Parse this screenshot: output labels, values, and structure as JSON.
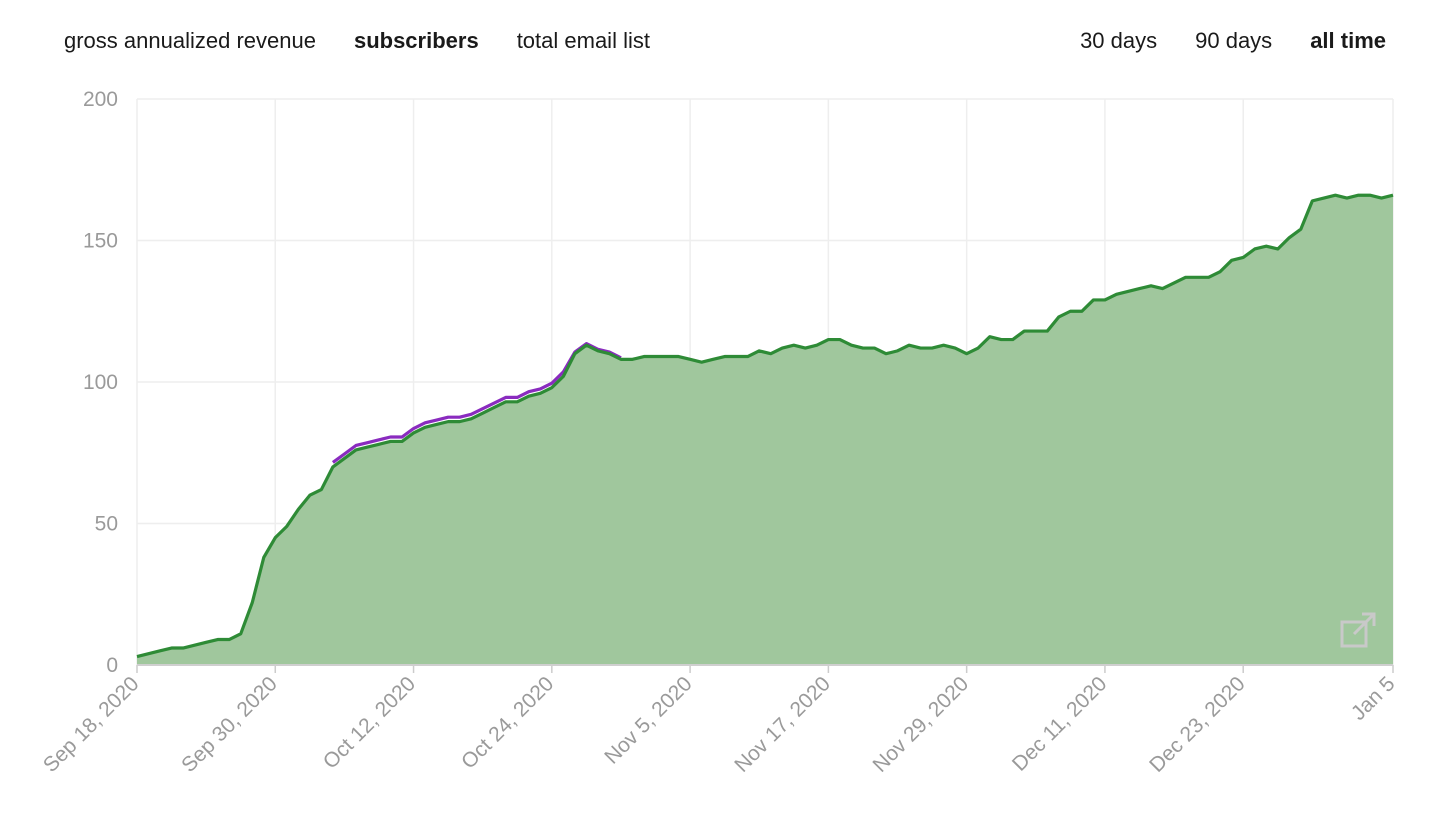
{
  "metric_tabs": [
    {
      "label": "gross annualized revenue",
      "active": false
    },
    {
      "label": "subscribers",
      "active": true
    },
    {
      "label": "total email list",
      "active": false
    }
  ],
  "range_tabs": [
    {
      "label": "30 days",
      "active": false
    },
    {
      "label": "90 days",
      "active": false
    },
    {
      "label": "all time",
      "active": true
    }
  ],
  "colors": {
    "fill": "#a0c79d",
    "line": "#2e8b36",
    "line2": "#8a2bbf",
    "grid": "#eeeeee",
    "tick": "#9a9a9a"
  },
  "expand_icon": "external-link-icon",
  "chart_data": {
    "type": "area",
    "title": "",
    "xlabel": "",
    "ylabel": "",
    "ylim": [
      0,
      200
    ],
    "yticks": [
      0,
      50,
      100,
      150,
      200
    ],
    "xlim": [
      "2020-09-18",
      "2021-01-05"
    ],
    "xticks": [
      {
        "date": "2020-09-18",
        "label": "Sep 18, 2020"
      },
      {
        "date": "2020-09-30",
        "label": "Sep 30, 2020"
      },
      {
        "date": "2020-10-12",
        "label": "Oct 12, 2020"
      },
      {
        "date": "2020-10-24",
        "label": "Oct 24, 2020"
      },
      {
        "date": "2020-11-05",
        "label": "Nov 5, 2020"
      },
      {
        "date": "2020-11-17",
        "label": "Nov 17, 2020"
      },
      {
        "date": "2020-11-29",
        "label": "Nov 29, 2020"
      },
      {
        "date": "2020-12-11",
        "label": "Dec 11, 2020"
      },
      {
        "date": "2020-12-23",
        "label": "Dec 23, 2020"
      },
      {
        "date": "2021-01-05",
        "label": "Jan 5"
      }
    ],
    "grid": true,
    "series": [
      {
        "color": "#2e8b36",
        "x": [
          "2020-09-18",
          "2020-09-19",
          "2020-09-20",
          "2020-09-21",
          "2020-09-22",
          "2020-09-23",
          "2020-09-24",
          "2020-09-25",
          "2020-09-26",
          "2020-09-27",
          "2020-09-28",
          "2020-09-29",
          "2020-09-30",
          "2020-10-01",
          "2020-10-02",
          "2020-10-03",
          "2020-10-04",
          "2020-10-05",
          "2020-10-06",
          "2020-10-07",
          "2020-10-08",
          "2020-10-09",
          "2020-10-10",
          "2020-10-11",
          "2020-10-12",
          "2020-10-13",
          "2020-10-14",
          "2020-10-15",
          "2020-10-16",
          "2020-10-17",
          "2020-10-18",
          "2020-10-19",
          "2020-10-20",
          "2020-10-21",
          "2020-10-22",
          "2020-10-23",
          "2020-10-24",
          "2020-10-25",
          "2020-10-26",
          "2020-10-27",
          "2020-10-28",
          "2020-10-29",
          "2020-10-30",
          "2020-10-31",
          "2020-11-01",
          "2020-11-02",
          "2020-11-03",
          "2020-11-04",
          "2020-11-05",
          "2020-11-06",
          "2020-11-07",
          "2020-11-08",
          "2020-11-09",
          "2020-11-10",
          "2020-11-11",
          "2020-11-12",
          "2020-11-13",
          "2020-11-14",
          "2020-11-15",
          "2020-11-16",
          "2020-11-17",
          "2020-11-18",
          "2020-11-19",
          "2020-11-20",
          "2020-11-21",
          "2020-11-22",
          "2020-11-23",
          "2020-11-24",
          "2020-11-25",
          "2020-11-26",
          "2020-11-27",
          "2020-11-28",
          "2020-11-29",
          "2020-11-30",
          "2020-12-01",
          "2020-12-02",
          "2020-12-03",
          "2020-12-04",
          "2020-12-05",
          "2020-12-06",
          "2020-12-07",
          "2020-12-08",
          "2020-12-09",
          "2020-12-10",
          "2020-12-11",
          "2020-12-12",
          "2020-12-13",
          "2020-12-14",
          "2020-12-15",
          "2020-12-16",
          "2020-12-17",
          "2020-12-18",
          "2020-12-19",
          "2020-12-20",
          "2020-12-21",
          "2020-12-22",
          "2020-12-23",
          "2020-12-24",
          "2020-12-25",
          "2020-12-26",
          "2020-12-27",
          "2020-12-28",
          "2020-12-29",
          "2020-12-30",
          "2020-12-31",
          "2021-01-01",
          "2021-01-02",
          "2021-01-03",
          "2021-01-04",
          "2021-01-05"
        ],
        "values": [
          3,
          4,
          5,
          6,
          6,
          7,
          8,
          9,
          9,
          11,
          22,
          38,
          45,
          49,
          55,
          60,
          62,
          70,
          73,
          76,
          77,
          78,
          79,
          79,
          82,
          84,
          85,
          86,
          86,
          87,
          89,
          91,
          93,
          93,
          95,
          96,
          98,
          102,
          110,
          113,
          111,
          110,
          108,
          108,
          109,
          109,
          109,
          109,
          108,
          107,
          108,
          109,
          109,
          109,
          111,
          110,
          112,
          113,
          112,
          113,
          115,
          115,
          113,
          112,
          112,
          110,
          111,
          113,
          112,
          112,
          113,
          112,
          110,
          112,
          116,
          115,
          115,
          118,
          118,
          118,
          123,
          125,
          125,
          129,
          129,
          131,
          132,
          133,
          134,
          133,
          135,
          137,
          137,
          137,
          139,
          143,
          144,
          147,
          148,
          147,
          151,
          154,
          164,
          165,
          166,
          165,
          166,
          166,
          165,
          166
        ]
      },
      {
        "color": "#8a2bbf",
        "x": [
          "2020-10-05",
          "2020-10-06",
          "2020-10-07",
          "2020-10-08",
          "2020-10-09",
          "2020-10-10",
          "2020-10-11",
          "2020-10-12",
          "2020-10-13",
          "2020-10-14",
          "2020-10-15",
          "2020-10-16",
          "2020-10-17",
          "2020-10-18",
          "2020-10-19",
          "2020-10-20",
          "2020-10-21",
          "2020-10-22",
          "2020-10-23",
          "2020-10-24",
          "2020-10-25",
          "2020-10-26",
          "2020-10-27",
          "2020-10-28",
          "2020-10-29",
          "2020-10-30"
        ],
        "values": [
          71,
          74,
          77,
          78,
          79,
          80,
          80,
          83,
          85,
          86,
          87,
          87,
          88,
          90,
          92,
          94,
          94,
          96,
          97,
          99,
          103,
          110,
          113,
          111,
          110,
          108
        ]
      }
    ]
  }
}
